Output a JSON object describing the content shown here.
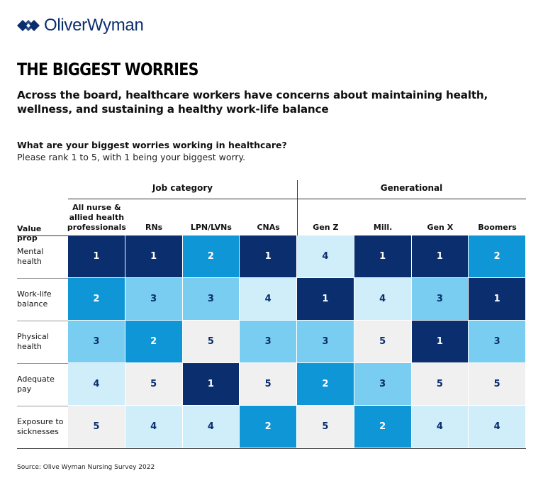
{
  "brand": {
    "name": "OliverWyman",
    "color": "#0a2e6e"
  },
  "title": "THE BIGGEST WORRIES",
  "subtitle": "Across the board, healthcare workers have concerns about maintaining health, wellness, and sustaining a healthy work-life balance",
  "question": "What are your biggest worries working in healthcare?",
  "instruction": "Please rank 1 to 5, with 1 being your biggest worry.",
  "source": "Source: Olive Wyman Nursing Survey 2022",
  "colors": {
    "1": "#0a2e6e",
    "2": "#0f96d6",
    "3": "#79cdf0",
    "4": "#cfeefa",
    "5": "#f0f0f0"
  },
  "chart_data": {
    "type": "table",
    "row_header_label": "Value prop",
    "groups": [
      {
        "label": "Job category",
        "columns": [
          "All nurse & allied health professionals",
          "RNs",
          "LPN/LVNs",
          "CNAs"
        ]
      },
      {
        "label": "Generational",
        "columns": [
          "Gen Z",
          "Mill.",
          "Gen X",
          "Boomers"
        ]
      }
    ],
    "columns": [
      "All nurse & allied health professionals",
      "RNs",
      "LPN/LVNs",
      "CNAs",
      "Gen Z",
      "Mill.",
      "Gen X",
      "Boomers"
    ],
    "rows": [
      {
        "label": "Mental health",
        "values": [
          1,
          1,
          2,
          1,
          4,
          1,
          1,
          2
        ]
      },
      {
        "label": "Work-life balance",
        "values": [
          2,
          3,
          3,
          4,
          1,
          4,
          3,
          1
        ]
      },
      {
        "label": "Physical health",
        "values": [
          3,
          2,
          5,
          3,
          3,
          5,
          1,
          3
        ]
      },
      {
        "label": "Adequate pay",
        "values": [
          4,
          5,
          1,
          5,
          2,
          3,
          5,
          5
        ]
      },
      {
        "label": "Exposure to sicknesses",
        "values": [
          5,
          4,
          4,
          2,
          5,
          2,
          4,
          4
        ]
      }
    ]
  }
}
